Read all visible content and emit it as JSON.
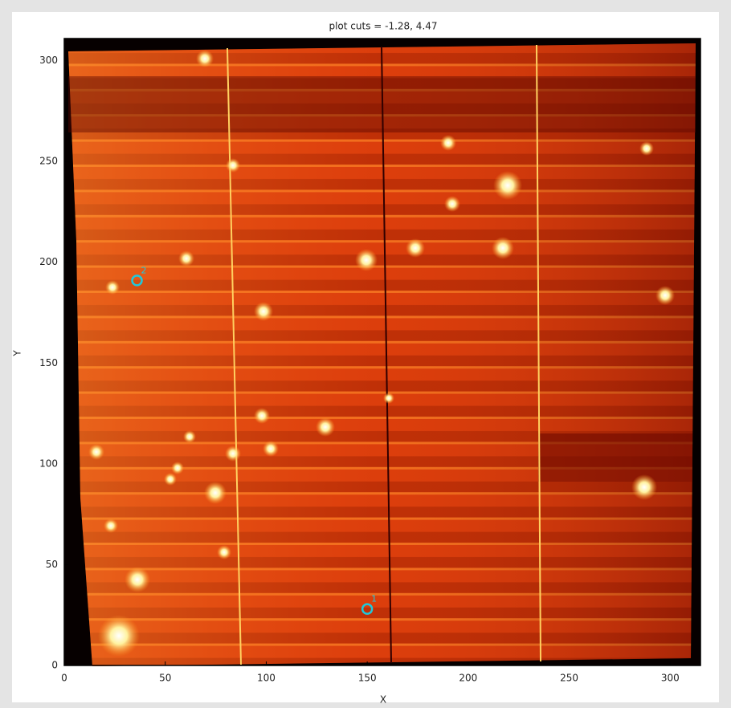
{
  "chart_data": {
    "type": "image",
    "title": "plot cuts = -1.28, 4.47",
    "xlabel": "X",
    "ylabel": "Y",
    "xlim": [
      0,
      315
    ],
    "ylim": [
      0,
      311
    ],
    "xticks": [
      0,
      50,
      100,
      150,
      200,
      250,
      300
    ],
    "yticks": [
      0,
      50,
      100,
      150,
      200,
      250,
      300
    ],
    "marker_color": "#1ec8dc",
    "markers": [
      {
        "x": 150,
        "y": 28,
        "label": "1"
      },
      {
        "x": 36,
        "y": 191,
        "label": "2"
      }
    ]
  }
}
